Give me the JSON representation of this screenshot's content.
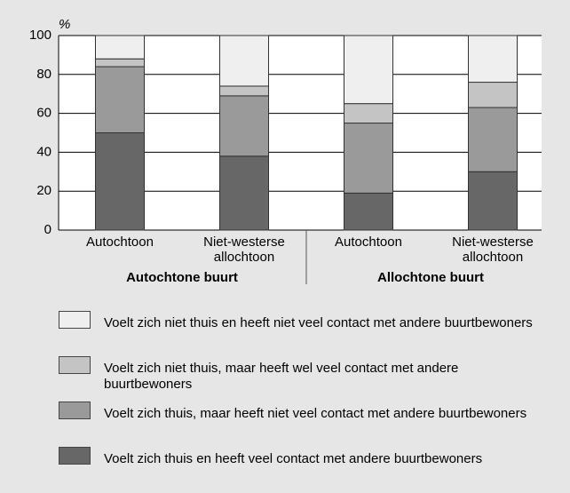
{
  "chart_data": {
    "type": "stacked_bar",
    "y_unit_label": "%",
    "categories": [
      "Autochtoon",
      "Niet-westerse allochtoon",
      "Autochtoon",
      "Niet-westerse allochtoon"
    ],
    "groups": [
      "Autochtone buurt",
      "Allochtone buurt"
    ],
    "series": [
      {
        "name": "Voelt zich thuis en heeft veel contact met andere buurtbewoners",
        "color": "#676767",
        "values": [
          50,
          38,
          19,
          30
        ]
      },
      {
        "name": "Voelt zich thuis, maar heeft niet veel contact met andere buurtbewoners",
        "color": "#9a9a9a",
        "values": [
          34,
          31,
          36,
          33
        ]
      },
      {
        "name": "Voelt zich niet thuis, maar heeft wel veel contact met andere buurtbewoners",
        "color": "#c4c4c4",
        "values": [
          4,
          5,
          10,
          13
        ]
      },
      {
        "name": "Voelt zich niet thuis en heeft niet veel contact met andere buurtbewoners",
        "color": "#efefef",
        "values": [
          12,
          26,
          35,
          24
        ]
      }
    ],
    "ylim": [
      0,
      100
    ],
    "yticks": [
      0,
      20,
      40,
      60,
      80,
      100
    ],
    "grid": true
  }
}
